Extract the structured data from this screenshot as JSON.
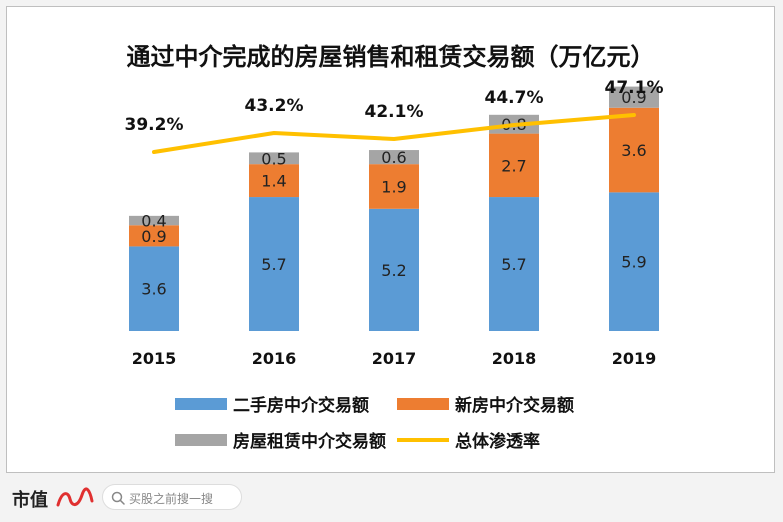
{
  "chart_data": {
    "type": "bar",
    "title": "通过中介完成的房屋销售和租赁交易额（万亿元）",
    "categories": [
      "2015",
      "2016",
      "2017",
      "2018",
      "2019"
    ],
    "series": [
      {
        "name": "二手房中介交易额",
        "values": [
          3.6,
          5.7,
          5.2,
          5.7,
          5.9
        ],
        "color": "#5b9bd5"
      },
      {
        "name": "新房中介交易额",
        "values": [
          0.9,
          1.4,
          1.9,
          2.7,
          3.6
        ],
        "color": "#ed7d31"
      },
      {
        "name": "房屋租赁中介交易额",
        "values": [
          0.4,
          0.5,
          0.6,
          0.8,
          0.9
        ],
        "color": "#a5a5a5"
      }
    ],
    "line": {
      "name": "总体渗透率",
      "values": [
        "39.2%",
        "43.2%",
        "42.1%",
        "44.7%",
        "47.1%"
      ],
      "color": "#ffc000"
    },
    "stacked": true,
    "grid": false,
    "legend_placement": "bottom"
  },
  "footer": {
    "brand": "市值",
    "search_placeholder": "买股之前搜一搜"
  }
}
